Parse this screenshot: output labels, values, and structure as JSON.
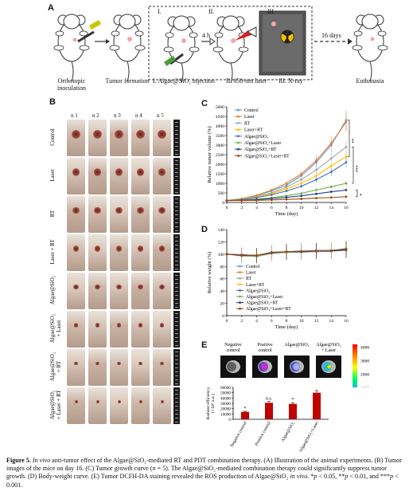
{
  "panel_labels": {
    "a": "A",
    "b": "B",
    "c": "C",
    "d": "D",
    "e": "E"
  },
  "panel_a": {
    "step1": "Orthotopic\ninoculation",
    "step2": "Tumor formation",
    "step3": "I. Algae@SiO₂ injection",
    "step4": "II. 650-nm laser",
    "step5": "III. X-ray",
    "step6": "Euthanasia",
    "roman1": "I.",
    "roman2": "II.",
    "roman3": "III",
    "wait1": "4 h",
    "wait2": "16 days"
  },
  "panel_b": {
    "columns": [
      "n 1",
      "n 2",
      "n 3",
      "n 4",
      "n 5"
    ],
    "rows": [
      "Control",
      "Laser",
      "RT",
      "Laser + RT",
      "Algae@SiO₂",
      "Algae@SiO₂\n+ Laser",
      "Algae@SiO₂\n+ RT",
      "Algae@SiO₂\n+ Laser + RT"
    ],
    "photo_colors": [
      "#cdb8aa",
      "#d6c5b8",
      "#c9b2a4",
      "#d2bfb2",
      "#dccbbe"
    ]
  },
  "chart_data": [
    {
      "id": "C",
      "type": "line",
      "xlabel": "Time (day)",
      "ylabel": "Relative tumor volume (%)",
      "xlim": [
        0,
        16
      ],
      "ylim": [
        0,
        5000
      ],
      "xticks": [
        0,
        2,
        4,
        6,
        8,
        10,
        12,
        14,
        16
      ],
      "yticks": [
        0,
        500,
        1000,
        1500,
        2000,
        2500,
        3000,
        3500,
        4000,
        4500,
        5000
      ],
      "x": [
        0,
        2,
        4,
        6,
        8,
        10,
        12,
        14,
        16
      ],
      "significance": [
        "**",
        "***",
        "*"
      ],
      "series": [
        {
          "name": "Control",
          "color": "#5b9bd5",
          "values": [
            100,
            180,
            350,
            600,
            900,
            1400,
            2100,
            3000,
            4300
          ]
        },
        {
          "name": "Laser",
          "color": "#ed7d31",
          "values": [
            100,
            200,
            380,
            650,
            1000,
            1500,
            2200,
            3100,
            4200
          ]
        },
        {
          "name": "RT",
          "color": "#a5a5a5",
          "values": [
            100,
            170,
            300,
            500,
            800,
            1200,
            1700,
            2300,
            2900
          ]
        },
        {
          "name": "Laser+RT",
          "color": "#ffc000",
          "values": [
            100,
            160,
            280,
            450,
            700,
            1000,
            1400,
            1900,
            2400
          ]
        },
        {
          "name": "Algae@SiO₂",
          "color": "#4472c4",
          "values": [
            100,
            150,
            250,
            400,
            600,
            850,
            1200,
            1600,
            2100
          ]
        },
        {
          "name": "Algae@SiO₂+Laser",
          "color": "#70ad47",
          "values": [
            100,
            120,
            170,
            250,
            350,
            480,
            650,
            820,
            1000
          ]
        },
        {
          "name": "Algae@SiO₂+RT",
          "color": "#264478",
          "values": [
            100,
            110,
            150,
            200,
            270,
            350,
            450,
            560,
            650
          ]
        },
        {
          "name": "Algae@SiO₂+Laser+RT",
          "color": "#9e480e",
          "values": [
            100,
            100,
            110,
            130,
            160,
            190,
            230,
            260,
            300
          ]
        }
      ]
    },
    {
      "id": "D",
      "type": "line",
      "xlabel": "Time (day)",
      "ylabel": "Relative weight (%)",
      "xlim": [
        0,
        16
      ],
      "ylim": [
        0,
        140
      ],
      "xticks": [
        0,
        2,
        4,
        6,
        8,
        10,
        12,
        14,
        16
      ],
      "yticks": [
        0,
        20,
        40,
        60,
        80,
        100,
        120,
        140
      ],
      "x": [
        0,
        2,
        4,
        6,
        8,
        10,
        12,
        14,
        16
      ],
      "series": [
        {
          "name": "Control",
          "color": "#5b9bd5",
          "values": [
            100,
            99,
            98,
            103,
            104,
            105,
            105,
            106,
            108
          ]
        },
        {
          "name": "Laser",
          "color": "#ed7d31",
          "values": [
            100,
            98,
            97,
            102,
            103,
            104,
            104,
            105,
            107
          ]
        },
        {
          "name": "RT",
          "color": "#a5a5a5",
          "values": [
            100,
            97,
            96,
            101,
            103,
            103,
            104,
            105,
            106
          ]
        },
        {
          "name": "Laser+RT",
          "color": "#ffc000",
          "values": [
            100,
            98,
            97,
            102,
            104,
            104,
            105,
            106,
            108
          ]
        },
        {
          "name": "Algae@SiO₂",
          "color": "#4472c4",
          "values": [
            100,
            99,
            98,
            103,
            104,
            105,
            106,
            106,
            109
          ]
        },
        {
          "name": "Algae@SiO₂+Laser",
          "color": "#70ad47",
          "values": [
            100,
            98,
            97,
            102,
            103,
            104,
            105,
            106,
            107
          ]
        },
        {
          "name": "Algae@SiO₂+RT",
          "color": "#264478",
          "values": [
            100,
            98,
            98,
            102,
            104,
            104,
            105,
            105,
            107
          ]
        },
        {
          "name": "Algae@SiO₂+Laser+RT",
          "color": "#9e480e",
          "values": [
            100,
            99,
            98,
            103,
            104,
            105,
            105,
            106,
            108
          ]
        }
      ]
    },
    {
      "id": "E",
      "type": "bar",
      "ylabel": "Radiant efficiency\n(×10⁶ a.u.)",
      "ylim": [
        0,
        60000
      ],
      "yticks": [
        0,
        10000,
        20000,
        30000,
        40000,
        50000,
        60000
      ],
      "categories": [
        "Negative control",
        "Positive control",
        "Algae@SiO₂",
        "Algae@SiO₂+Laser"
      ],
      "values": [
        14000,
        31000,
        29000,
        50000
      ],
      "annotations": [
        "*",
        "n.s.",
        "*",
        ""
      ],
      "bar_color": "#c00000",
      "image_labels": [
        "Negative\ncontrol",
        "Positive\ncontrol",
        "Algae@SiO₂",
        "Algae@SiO₂\n+ Laser"
      ],
      "colorbar_ticks": [
        1000,
        2000,
        3000,
        4000
      ]
    }
  ],
  "caption": {
    "fig": "Figure 5.",
    "title_italic": "In vivo",
    "text1": " anti-tumor effect of the Algae@SiO₂-mediated RT and PDT combination therapy. (A) Illustration of the animal experiments. (B) Tumor images of the mice on day 16. (C) Tumor growth curve (",
    "n_eq": "n",
    "text2": " = 5). The Algae@SiO₂-mediated combination therapy could significantly suppress tumor growth. (D) Body-weight curve. (E) Tumor DCFH-DA staining revealed the ROS production of Algae@SiO₂ ",
    "in_vivo2": "in vivo",
    "text3": ". *",
    "p1": "p",
    "text4": " < 0.05, **",
    "p2": "p",
    "text5": " < 0.01, and ***",
    "p3": "p",
    "text6": " < 0.001."
  }
}
